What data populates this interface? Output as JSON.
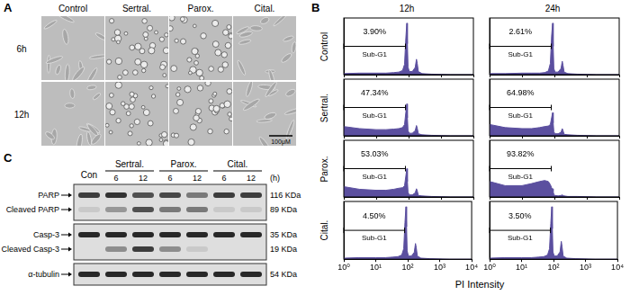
{
  "figure": {
    "panel_a": {
      "label": "A",
      "columns": [
        "Control",
        "Sertral.",
        "Parox.",
        "Cital."
      ],
      "rows": [
        "6h",
        "12h"
      ],
      "scale_bar": "100μM"
    },
    "panel_b": {
      "label": "B",
      "columns": [
        "12h",
        "24h"
      ],
      "rows": [
        "Control",
        "Sertral.",
        "Parox.",
        "Cital."
      ],
      "x_label": "PI Intensity"
    },
    "panel_c": {
      "label": "C",
      "lanes": [
        {
          "group": "Con"
        },
        {
          "group": "Sertral.",
          "time": 6
        },
        {
          "group": "Sertral.",
          "time": 12
        },
        {
          "group": "Parox.",
          "time": 6
        },
        {
          "group": "Parox.",
          "time": 12
        },
        {
          "group": "Cital.",
          "time": 6
        },
        {
          "group": "Cital.",
          "time": 12
        }
      ],
      "time_unit": "(h)",
      "blots": [
        [
          {
            "label": "PARP",
            "size": "116 KDa",
            "intensities": [
              0.8,
              0.85,
              0.7,
              0.75,
              0.5,
              0.8,
              0.8
            ]
          },
          {
            "label": "Cleaved PARP",
            "size": "89 KDa",
            "intensities": [
              0.1,
              0.35,
              0.7,
              0.5,
              0.5,
              0.1,
              0.1
            ]
          }
        ],
        [
          {
            "label": "Casp-3",
            "size": "35 KDa",
            "intensities": [
              0.9,
              0.9,
              0.9,
              0.9,
              0.9,
              0.9,
              0.9
            ]
          },
          {
            "label": "Cleaved Casp-3",
            "size": "19 KDa",
            "intensities": [
              0,
              0.4,
              0.8,
              0.4,
              0.1,
              0,
              0
            ]
          }
        ],
        [
          {
            "label": "α-tubulin",
            "size": "54 KDa",
            "intensities": [
              0.9,
              0.9,
              0.9,
              0.9,
              0.9,
              0.9,
              0.9
            ]
          }
        ]
      ]
    }
  },
  "chart_data": [
    {
      "type": "area",
      "x": [
        1,
        3,
        10,
        20,
        35,
        50,
        65,
        75,
        82,
        88,
        92,
        96,
        105,
        130,
        160,
        175,
        185,
        200,
        260,
        500,
        2000,
        10000
      ],
      "values": [
        2,
        3,
        3,
        3,
        4,
        5,
        8,
        20,
        70,
        100,
        60,
        15,
        6,
        6,
        14,
        30,
        22,
        6,
        2,
        1,
        0,
        0
      ],
      "color": "#5b4f9f",
      "xlim": [
        1,
        10000
      ],
      "xticks": [
        {
          "value": 1,
          "label": "10⁰"
        },
        {
          "value": 10,
          "label": "10¹"
        },
        {
          "value": 100,
          "label": "10²"
        },
        {
          "value": 1000,
          "label": "10³"
        },
        {
          "value": 10000,
          "label": "10⁴"
        }
      ],
      "ylim": [
        0,
        110
      ],
      "log": "x",
      "grid": false,
      "tick_labels": false,
      "gate": [
        1,
        80
      ],
      "annotations": [
        "3.90%",
        "Sub-G1"
      ]
    },
    {
      "type": "area",
      "x": [
        1,
        3,
        10,
        20,
        35,
        50,
        65,
        75,
        82,
        88,
        92,
        96,
        105,
        130,
        160,
        175,
        185,
        200,
        260,
        500,
        2000,
        10000
      ],
      "values": [
        2,
        2,
        3,
        3,
        3,
        4,
        7,
        22,
        75,
        100,
        55,
        12,
        5,
        5,
        12,
        26,
        18,
        5,
        2,
        1,
        0,
        0
      ],
      "color": "#5b4f9f",
      "xlim": [
        1,
        10000
      ],
      "xticks": [
        {
          "value": 1,
          "label": "10⁰"
        },
        {
          "value": 10,
          "label": "10¹"
        },
        {
          "value": 100,
          "label": "10²"
        },
        {
          "value": 1000,
          "label": "10³"
        },
        {
          "value": 10000,
          "label": "10⁴"
        }
      ],
      "ylim": [
        0,
        110
      ],
      "log": "x",
      "grid": false,
      "tick_labels": false,
      "gate": [
        1,
        80
      ],
      "annotations": [
        "2.61%",
        "Sub-G1"
      ]
    },
    {
      "type": "area",
      "x": [
        1,
        3,
        10,
        20,
        35,
        50,
        65,
        75,
        82,
        88,
        92,
        96,
        105,
        130,
        160,
        175,
        185,
        200,
        260,
        500,
        2000,
        10000
      ],
      "values": [
        18,
        14,
        12,
        12,
        13,
        14,
        16,
        22,
        45,
        62,
        35,
        10,
        5,
        5,
        10,
        20,
        15,
        4,
        2,
        1,
        0,
        0
      ],
      "color": "#5b4f9f",
      "xlim": [
        1,
        10000
      ],
      "xticks": [
        {
          "value": 1,
          "label": "10⁰"
        },
        {
          "value": 10,
          "label": "10¹"
        },
        {
          "value": 100,
          "label": "10²"
        },
        {
          "value": 1000,
          "label": "10³"
        },
        {
          "value": 10000,
          "label": "10⁴"
        }
      ],
      "ylim": [
        0,
        110
      ],
      "log": "x",
      "grid": false,
      "tick_labels": false,
      "gate": [
        1,
        80
      ],
      "annotations": [
        "47.34%",
        "Sub-G1"
      ]
    },
    {
      "type": "area",
      "x": [
        1,
        3,
        10,
        20,
        35,
        50,
        65,
        75,
        82,
        88,
        92,
        96,
        105,
        130,
        160,
        175,
        185,
        200,
        260,
        500,
        2000,
        10000
      ],
      "values": [
        22,
        16,
        14,
        14,
        16,
        18,
        19,
        22,
        35,
        45,
        25,
        8,
        4,
        4,
        7,
        14,
        10,
        3,
        2,
        1,
        0,
        0
      ],
      "color": "#5b4f9f",
      "xlim": [
        1,
        10000
      ],
      "xticks": [
        {
          "value": 1,
          "label": "10⁰"
        },
        {
          "value": 10,
          "label": "10¹"
        },
        {
          "value": 100,
          "label": "10²"
        },
        {
          "value": 1000,
          "label": "10³"
        },
        {
          "value": 10000,
          "label": "10⁴"
        }
      ],
      "ylim": [
        0,
        110
      ],
      "log": "x",
      "grid": false,
      "tick_labels": false,
      "gate": [
        1,
        80
      ],
      "annotations": [
        "64.98%",
        "Sub-G1"
      ]
    },
    {
      "type": "area",
      "x": [
        1,
        3,
        10,
        20,
        35,
        50,
        65,
        75,
        82,
        88,
        92,
        96,
        105,
        130,
        160,
        175,
        185,
        200,
        260,
        500,
        2000,
        10000
      ],
      "values": [
        20,
        15,
        13,
        13,
        15,
        17,
        18,
        22,
        40,
        55,
        30,
        9,
        4,
        4,
        8,
        16,
        12,
        3,
        2,
        1,
        0,
        0
      ],
      "color": "#5b4f9f",
      "xlim": [
        1,
        10000
      ],
      "xticks": [
        {
          "value": 1,
          "label": "10⁰"
        },
        {
          "value": 10,
          "label": "10¹"
        },
        {
          "value": 100,
          "label": "10²"
        },
        {
          "value": 1000,
          "label": "10³"
        },
        {
          "value": 10000,
          "label": "10⁴"
        }
      ],
      "ylim": [
        0,
        110
      ],
      "log": "x",
      "grid": false,
      "tick_labels": false,
      "gate": [
        1,
        80
      ],
      "annotations": [
        "53.03%",
        "Sub-G1"
      ]
    },
    {
      "type": "area",
      "x": [
        1,
        3,
        10,
        20,
        35,
        50,
        65,
        75,
        82,
        88,
        92,
        96,
        105,
        130,
        160,
        175,
        185,
        200,
        260,
        500,
        2000,
        10000
      ],
      "values": [
        30,
        22,
        22,
        26,
        30,
        32,
        30,
        24,
        18,
        16,
        10,
        5,
        3,
        2,
        3,
        4,
        3,
        2,
        1,
        1,
        0,
        0
      ],
      "color": "#5b4f9f",
      "xlim": [
        1,
        10000
      ],
      "xticks": [
        {
          "value": 1,
          "label": "10⁰"
        },
        {
          "value": 10,
          "label": "10¹"
        },
        {
          "value": 100,
          "label": "10²"
        },
        {
          "value": 1000,
          "label": "10³"
        },
        {
          "value": 10000,
          "label": "10⁴"
        }
      ],
      "ylim": [
        0,
        110
      ],
      "log": "x",
      "grid": false,
      "tick_labels": false,
      "gate": [
        1,
        80
      ],
      "annotations": [
        "93.82%",
        "Sub-G1"
      ]
    },
    {
      "type": "area",
      "x": [
        1,
        3,
        10,
        20,
        35,
        50,
        65,
        75,
        82,
        88,
        92,
        96,
        105,
        130,
        160,
        175,
        185,
        200,
        260,
        500,
        2000,
        10000
      ],
      "values": [
        2,
        3,
        3,
        3,
        4,
        5,
        8,
        20,
        70,
        100,
        62,
        16,
        6,
        6,
        13,
        30,
        22,
        6,
        2,
        1,
        0,
        0
      ],
      "color": "#5b4f9f",
      "xlim": [
        1,
        10000
      ],
      "xticks": [
        {
          "value": 1,
          "label": "10⁰"
        },
        {
          "value": 10,
          "label": "10¹"
        },
        {
          "value": 100,
          "label": "10²"
        },
        {
          "value": 1000,
          "label": "10³"
        },
        {
          "value": 10000,
          "label": "10⁴"
        }
      ],
      "ylim": [
        0,
        110
      ],
      "log": "x",
      "grid": false,
      "tick_labels": "x",
      "gate": [
        1,
        80
      ],
      "annotations": [
        "4.50%",
        "Sub-G1"
      ]
    },
    {
      "type": "area",
      "x": [
        1,
        3,
        10,
        20,
        35,
        50,
        65,
        75,
        82,
        88,
        92,
        96,
        105,
        130,
        160,
        175,
        185,
        200,
        260,
        500,
        2000,
        10000
      ],
      "values": [
        2,
        3,
        3,
        3,
        4,
        5,
        8,
        20,
        68,
        100,
        58,
        14,
        6,
        6,
        14,
        34,
        24,
        6,
        2,
        1,
        0,
        0
      ],
      "color": "#5b4f9f",
      "xlim": [
        1,
        10000
      ],
      "xticks": [
        {
          "value": 1,
          "label": "10⁰"
        },
        {
          "value": 10,
          "label": "10¹"
        },
        {
          "value": 100,
          "label": "10²"
        },
        {
          "value": 1000,
          "label": "10³"
        },
        {
          "value": 10000,
          "label": "10⁴"
        }
      ],
      "ylim": [
        0,
        110
      ],
      "log": "x",
      "grid": false,
      "tick_labels": "x",
      "gate": [
        1,
        80
      ],
      "annotations": [
        "3.50%",
        "Sub-G1"
      ]
    }
  ]
}
